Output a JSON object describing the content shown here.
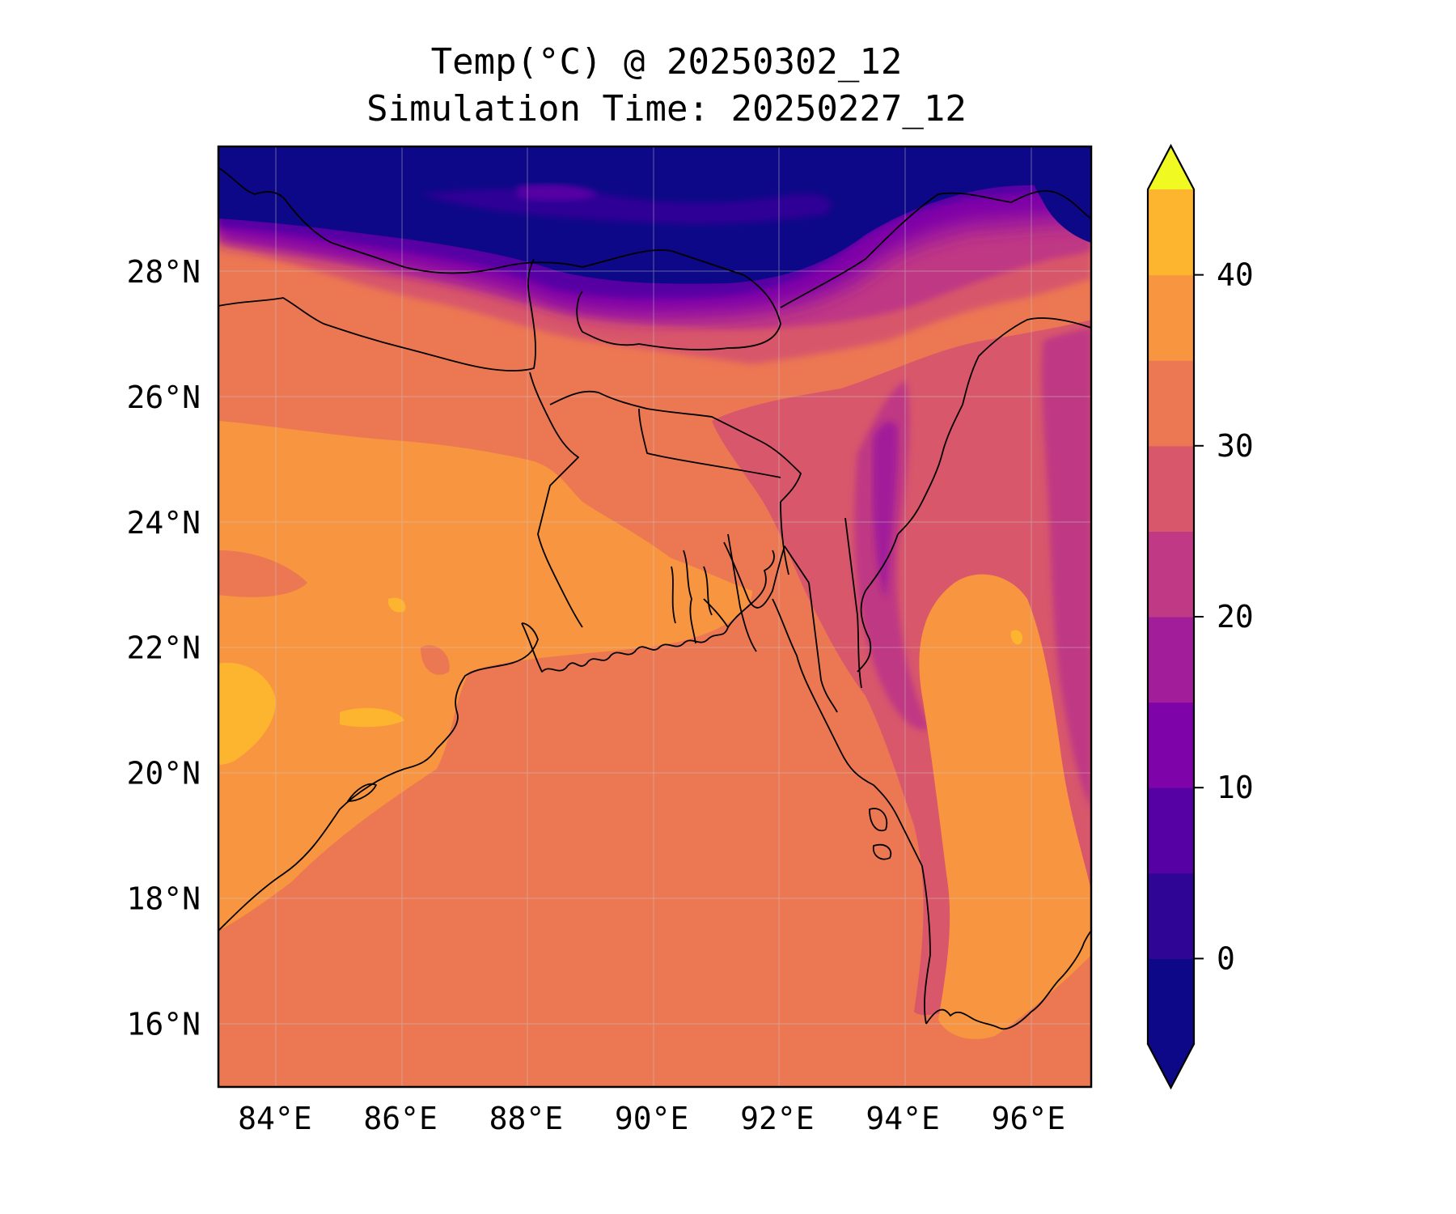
{
  "title": {
    "line1": "Temp(°C) @ 20250302_12",
    "line2": "Simulation Time: 20250227_12"
  },
  "map": {
    "lon_range": [
      83.1,
      97.0
    ],
    "lat_range": [
      15.0,
      30.0
    ],
    "lon_ticks": [
      "84°E",
      "86°E",
      "88°E",
      "90°E",
      "92°E",
      "94°E",
      "96°E"
    ],
    "lat_ticks": [
      "28°N",
      "26°N",
      "24°N",
      "22°N",
      "20°N",
      "18°N",
      "16°N"
    ],
    "gridlines": true
  },
  "colorbar": {
    "orientation": "vertical",
    "extend": "both",
    "levels": [
      -5,
      0,
      5,
      10,
      15,
      20,
      25,
      30,
      35,
      40,
      45
    ],
    "tick_labels": [
      "0",
      "10",
      "20",
      "30",
      "40"
    ],
    "tick_values": [
      0,
      10,
      20,
      30,
      40
    ],
    "colors": [
      "#0d0887",
      "#2e0595",
      "#5601a4",
      "#7e03a8",
      "#a21d9a",
      "#bf3984",
      "#d8576b",
      "#ec7753",
      "#f89540",
      "#fdb42f",
      "#f3e129"
    ],
    "under_color": "#0d0887",
    "over_color": "#f0f921",
    "colormap": "plasma"
  }
}
